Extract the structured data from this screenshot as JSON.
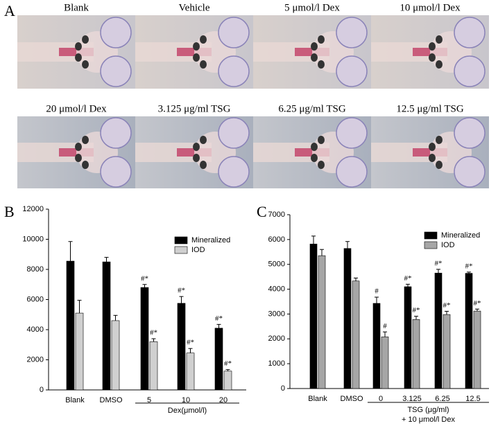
{
  "panel_a": {
    "label": "A",
    "images": [
      {
        "label": "Blank"
      },
      {
        "label": "Vehicle"
      },
      {
        "label": "5 μmol/l Dex"
      },
      {
        "label": "10 μmol/l Dex"
      },
      {
        "label": "20 μmol/l Dex"
      },
      {
        "label": "3.125 μg/ml TSG"
      },
      {
        "label": "6.25 μg/ml TSG"
      },
      {
        "label": "12.5 μg/ml TSG"
      }
    ]
  },
  "chart_data": [
    {
      "type": "bar",
      "panel_label": "B",
      "categories": [
        "Blank",
        "DMSO",
        "5",
        "10",
        "20"
      ],
      "group_label": [
        "Dex(μmol/l)"
      ],
      "series": [
        {
          "name": "Mineralized",
          "color": "#000000",
          "values": [
            8550,
            8500,
            6800,
            5750,
            4100
          ],
          "error": [
            1300,
            300,
            200,
            450,
            250
          ],
          "markers": [
            null,
            null,
            "#*",
            "#*",
            "#*"
          ]
        },
        {
          "name": "IOD",
          "color": "#d0d0d0",
          "values": [
            5100,
            4600,
            3200,
            2450,
            1250
          ],
          "error": [
            850,
            350,
            200,
            300,
            100
          ],
          "markers": [
            null,
            null,
            "#*",
            "#*",
            "#*"
          ]
        }
      ],
      "ylim": [
        0,
        12000
      ],
      "yticks": [
        0,
        2000,
        4000,
        6000,
        8000,
        10000,
        12000
      ]
    },
    {
      "type": "bar",
      "panel_label": "C",
      "categories": [
        "Blank",
        "DMSO",
        "0",
        "3.125",
        "6.25",
        "12.5"
      ],
      "group_label": [
        "TSG (μg/ml)",
        "+ 10 μmol/l Dex"
      ],
      "series": [
        {
          "name": "Mineralized",
          "color": "#000000",
          "values": [
            5820,
            5640,
            3430,
            4100,
            4650,
            4640
          ],
          "error": [
            320,
            280,
            250,
            100,
            150,
            50
          ],
          "markers": [
            null,
            null,
            "#",
            "#*",
            "#*",
            "#*"
          ]
        },
        {
          "name": "IOD",
          "color": "#a6a6a6",
          "values": [
            5350,
            4330,
            2080,
            2780,
            2980,
            3120
          ],
          "error": [
            250,
            120,
            200,
            130,
            130,
            80
          ],
          "markers": [
            null,
            null,
            "#",
            "#*",
            "#*",
            "#*"
          ]
        }
      ],
      "ylim": [
        0,
        7000
      ],
      "yticks": [
        0,
        1000,
        2000,
        3000,
        4000,
        5000,
        6000,
        7000
      ]
    }
  ]
}
